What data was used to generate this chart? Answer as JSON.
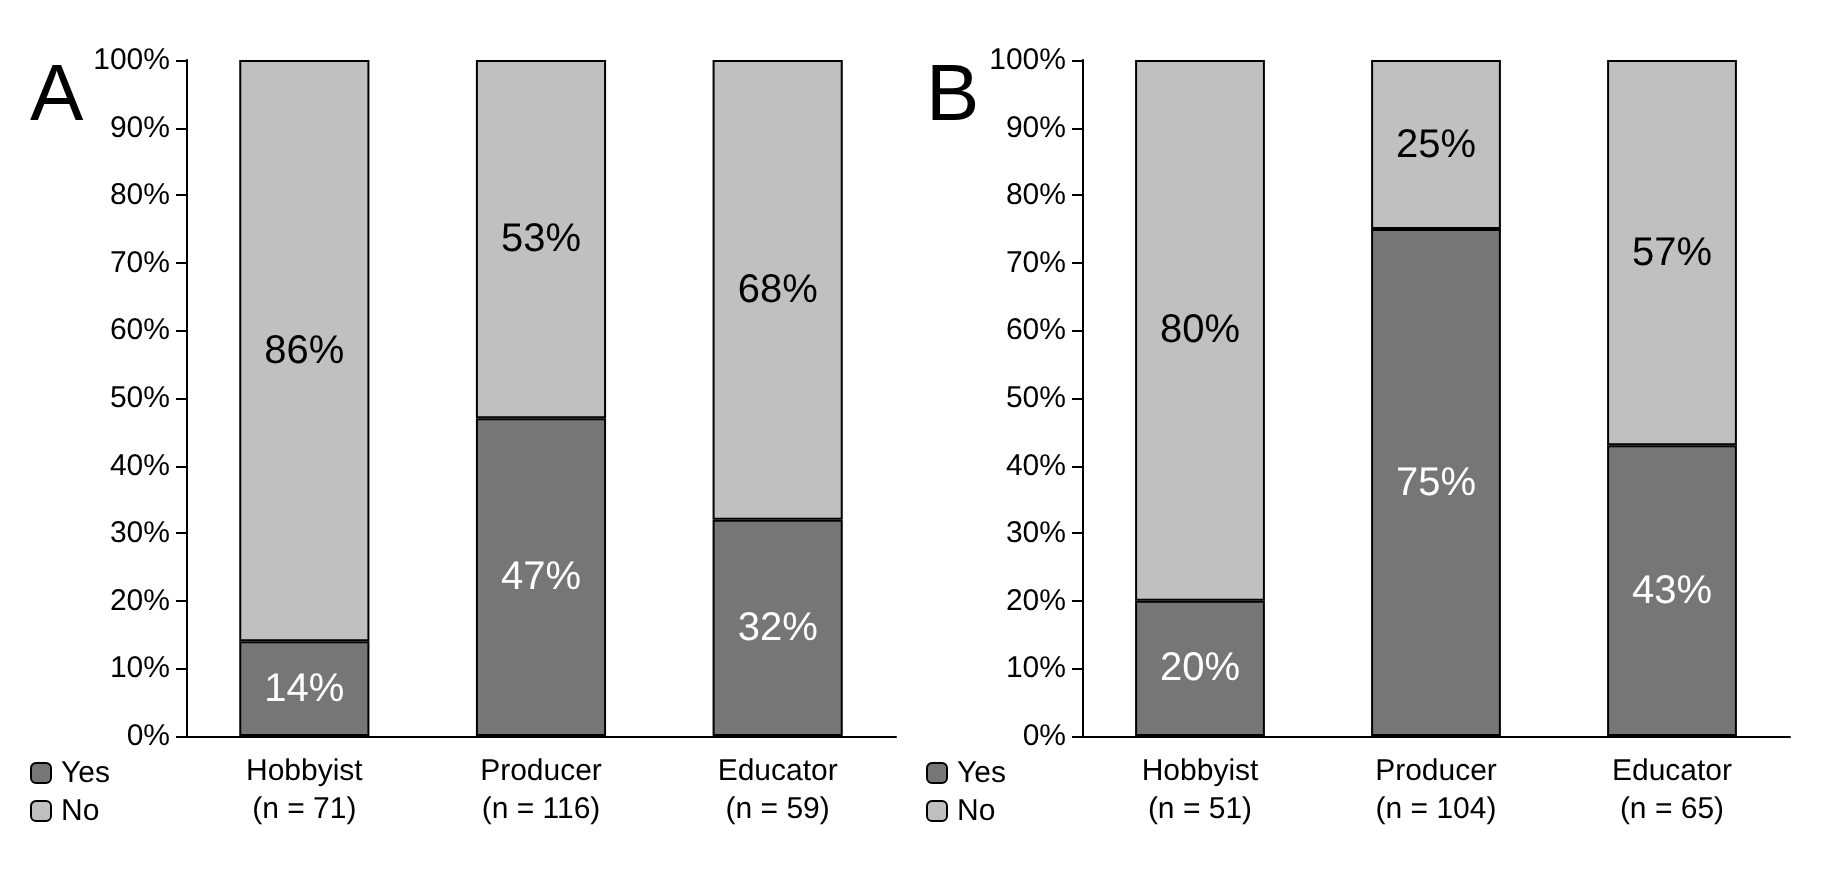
{
  "chart_data": [
    {
      "type": "bar",
      "title": "A",
      "categories": [
        "Hobbyist\n(n = 71)",
        "Producer\n(n = 116)",
        "Educator\n(n = 59)"
      ],
      "stacked": true,
      "legend": "bottom left",
      "grid": false,
      "ylim": [
        0,
        100
      ],
      "yticks": [
        {
          "value": 0,
          "label": "0%"
        },
        {
          "value": 10,
          "label": "10%"
        },
        {
          "value": 20,
          "label": "20%"
        },
        {
          "value": 30,
          "label": "30%"
        },
        {
          "value": 40,
          "label": "40%"
        },
        {
          "value": 50,
          "label": "50%"
        },
        {
          "value": 60,
          "label": "60%"
        },
        {
          "value": 70,
          "label": "70%"
        },
        {
          "value": 80,
          "label": "80%"
        },
        {
          "value": 90,
          "label": "90%"
        },
        {
          "value": 100,
          "label": "100%"
        }
      ],
      "series": [
        {
          "name": "Yes",
          "color": "#767676",
          "values": [
            14,
            47,
            32
          ],
          "value_labels": [
            "14%",
            "47%",
            "32%"
          ]
        },
        {
          "name": "No",
          "color": "#c0c0c0",
          "values": [
            86,
            53,
            68
          ],
          "value_labels": [
            "86%",
            "53%",
            "68%"
          ]
        }
      ]
    },
    {
      "type": "bar",
      "title": "B",
      "categories": [
        "Hobbyist\n(n = 51)",
        "Producer\n(n = 104)",
        "Educator\n(n = 65)"
      ],
      "stacked": true,
      "legend": "bottom left",
      "grid": false,
      "ylim": [
        0,
        100
      ],
      "yticks": [
        {
          "value": 0,
          "label": "0%"
        },
        {
          "value": 10,
          "label": "10%"
        },
        {
          "value": 20,
          "label": "20%"
        },
        {
          "value": 30,
          "label": "30%"
        },
        {
          "value": 40,
          "label": "40%"
        },
        {
          "value": 50,
          "label": "50%"
        },
        {
          "value": 60,
          "label": "60%"
        },
        {
          "value": 70,
          "label": "70%"
        },
        {
          "value": 80,
          "label": "80%"
        },
        {
          "value": 90,
          "label": "90%"
        },
        {
          "value": 100,
          "label": "100%"
        }
      ],
      "series": [
        {
          "name": "Yes",
          "color": "#767676",
          "values": [
            20,
            75,
            43
          ],
          "value_labels": [
            "20%",
            "75%",
            "43%"
          ]
        },
        {
          "name": "No",
          "color": "#c0c0c0",
          "values": [
            80,
            25,
            57
          ],
          "value_labels": [
            "80%",
            "25%",
            "57%"
          ]
        }
      ]
    }
  ]
}
